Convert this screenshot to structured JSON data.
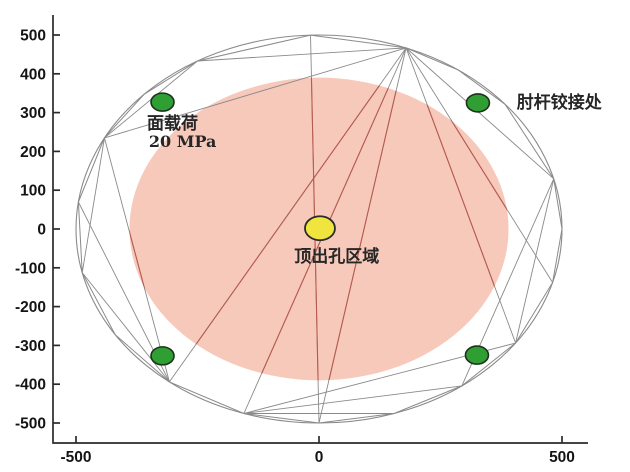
{
  "figure": {
    "background": "#ffffff"
  },
  "chart_data": {
    "type": "scatter",
    "title": "",
    "xlabel": "",
    "ylabel": "",
    "xlim": [
      -547,
      553
    ],
    "ylim": [
      -551,
      554
    ],
    "grid": false,
    "legend": false,
    "xticks": [
      -500,
      0,
      500
    ],
    "yticks": [
      500,
      400,
      300,
      200,
      100,
      0,
      -100,
      -200,
      -300,
      -400,
      -500
    ],
    "axis_color": "#2b2b2b",
    "tick_label_color": "#141414",
    "mesh_color": "#8a8a8a",
    "outer_boundary": {
      "radius": 500,
      "vertex_angles_deg": [
        0,
        15,
        40,
        55,
        69,
        92,
        120,
        136,
        152,
        172,
        193,
        213,
        232,
        252,
        270,
        288,
        306,
        324,
        344
      ],
      "color": "#8a8a8a"
    },
    "mesh_chords_deg": [
      [
        69,
        120
      ],
      [
        69,
        152
      ],
      [
        69,
        15
      ],
      [
        120,
        152
      ],
      [
        152,
        193
      ],
      [
        232,
        193
      ],
      [
        232,
        172
      ],
      [
        252,
        288
      ],
      [
        252,
        306
      ],
      [
        252,
        324
      ],
      [
        15,
        324
      ],
      [
        15,
        306
      ],
      [
        69,
        232
      ],
      [
        69,
        252
      ],
      [
        69,
        270
      ],
      [
        92,
        270
      ],
      [
        152,
        232
      ],
      [
        69,
        324
      ],
      [
        69,
        344
      ]
    ],
    "inner_chords_deg": [
      [
        69,
        232
      ],
      [
        69,
        252
      ],
      [
        69,
        270
      ],
      [
        92,
        270
      ],
      [
        152,
        232
      ],
      [
        69,
        324
      ],
      [
        69,
        344
      ]
    ],
    "inner_region": {
      "label": "顶出孔区域",
      "radius": 390,
      "fill": "#f7c9bb",
      "edge_line_color": "#b85a4e"
    },
    "markers": {
      "hinge_points": {
        "name": "elbow-hinge-node",
        "fill": "#2f9e33",
        "stroke": "#1c321c",
        "points": [
          [
            -322,
            327
          ],
          [
            327,
            325
          ],
          [
            -322,
            -327
          ],
          [
            325,
            -325
          ]
        ]
      },
      "ejector_hole": {
        "name": "ejector-hole-node",
        "fill": "#efe53e",
        "stroke": "#2b2b2b",
        "point": [
          2,
          2
        ]
      }
    },
    "annotations": [
      {
        "id": "surface-load-label",
        "text": "面载荷",
        "x": -354,
        "y": 273,
        "style": "cjk"
      },
      {
        "id": "surface-load-value",
        "text": "20 MPa",
        "x": -350,
        "y": 227,
        "style": "val"
      },
      {
        "id": "elbow-hinge-label",
        "text": "肘杆铰接处",
        "x": 407,
        "y": 327,
        "style": "cjk"
      },
      {
        "id": "ejector-hole-label",
        "text": "顶出孔区域",
        "x": -51,
        "y": -70,
        "style": "cjk"
      }
    ]
  }
}
